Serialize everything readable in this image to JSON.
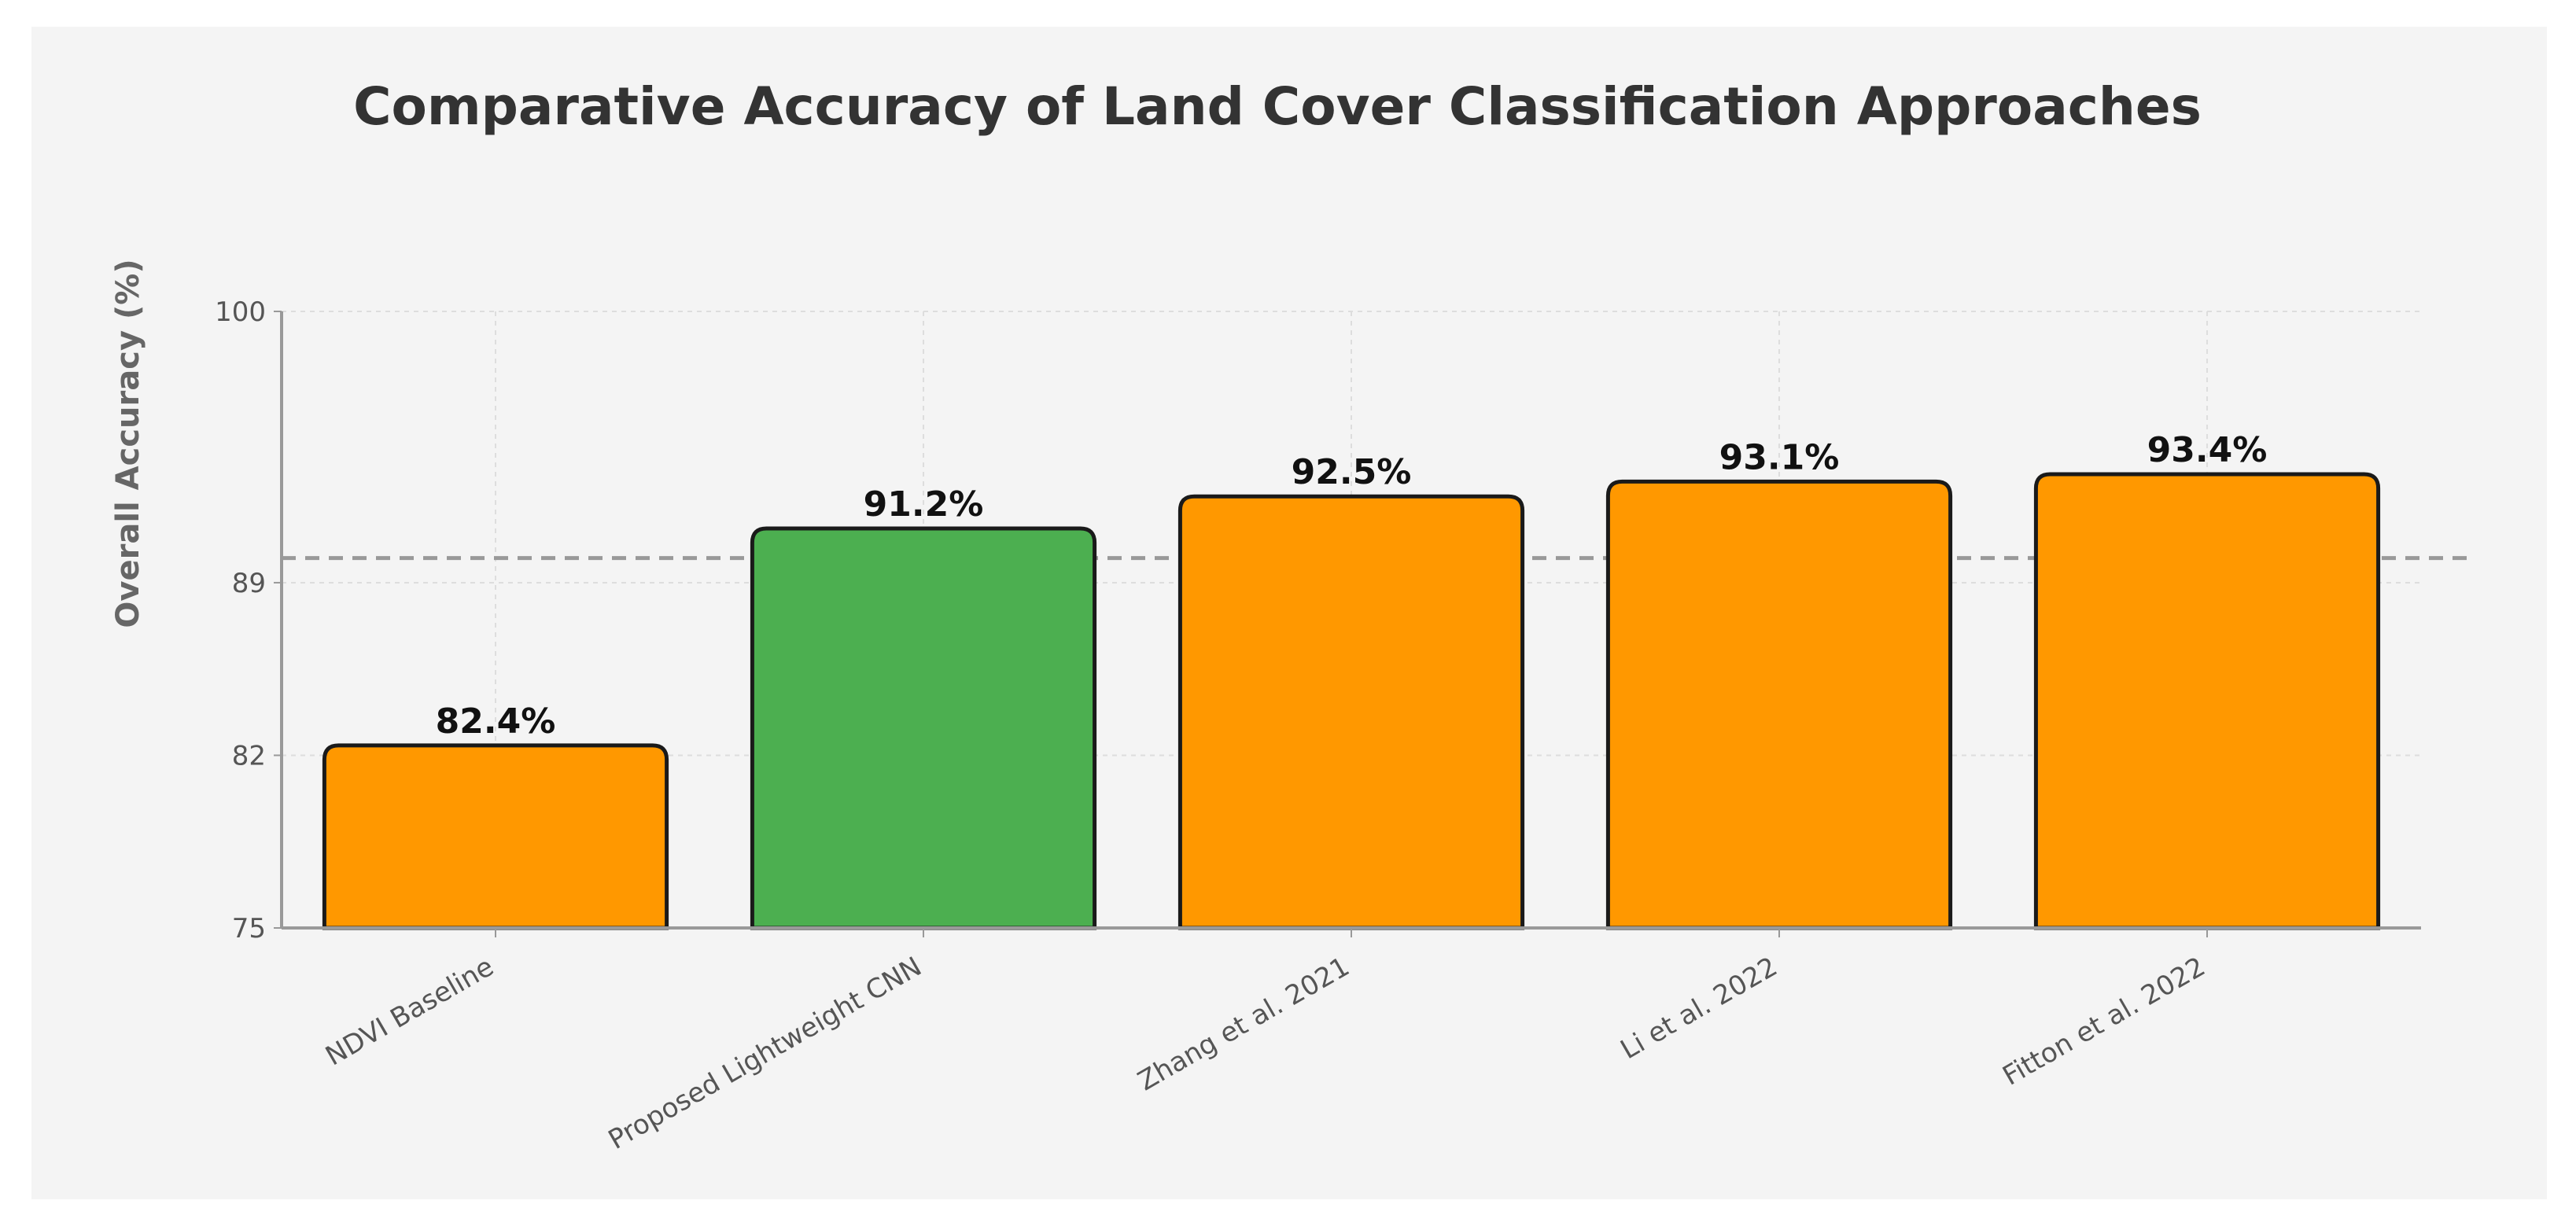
{
  "chart_data": {
    "type": "bar",
    "title": "Comparative Accuracy of Land Cover Classification Approaches",
    "xlabel": "",
    "ylabel": "Overall Accuracy (%)",
    "ylim": [
      75,
      100
    ],
    "yticks": [
      75,
      82,
      89,
      100
    ],
    "grid": true,
    "categories": [
      "NDVI Baseline",
      "Proposed Lightweight CNN",
      "Zhang et al. 2021",
      "Li et al. 2022",
      "Fitton et al. 2022"
    ],
    "values": [
      82.4,
      91.2,
      92.5,
      93.1,
      93.4
    ],
    "data_labels": [
      "82.4%",
      "91.2%",
      "92.5%",
      "93.1%",
      "93.4%"
    ],
    "bar_colors": [
      "#ff9800",
      "#4caf50",
      "#ff9800",
      "#ff9800",
      "#ff9800"
    ],
    "reference_line": 90
  }
}
